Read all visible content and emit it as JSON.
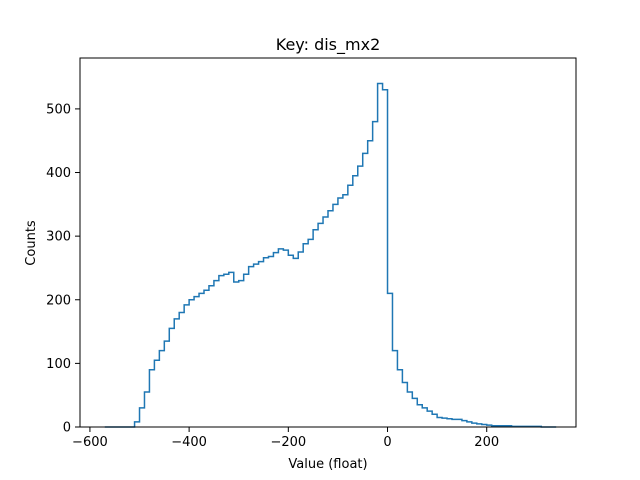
{
  "chart_data": {
    "type": "histogram",
    "title": "Key: dis_mx2",
    "xlabel": "Value (float)",
    "ylabel": "Counts",
    "xlim": [
      -620,
      380
    ],
    "ylim": [
      0,
      580
    ],
    "xticks": [
      -600,
      -400,
      -200,
      0,
      200
    ],
    "xtick_labels": [
      "−600",
      "−400",
      "−200",
      "0",
      "200"
    ],
    "yticks": [
      0,
      100,
      200,
      300,
      400,
      500
    ],
    "ytick_labels": [
      "0",
      "100",
      "200",
      "300",
      "400",
      "500"
    ],
    "grid": false,
    "color": "#1f77b4",
    "bin_centers": [
      -565,
      -555,
      -545,
      -535,
      -525,
      -515,
      -505,
      -495,
      -485,
      -475,
      -465,
      -455,
      -445,
      -435,
      -425,
      -415,
      -405,
      -395,
      -385,
      -375,
      -365,
      -355,
      -345,
      -335,
      -325,
      -315,
      -305,
      -295,
      -285,
      -275,
      -265,
      -255,
      -245,
      -235,
      -225,
      -215,
      -205,
      -195,
      -185,
      -175,
      -165,
      -155,
      -145,
      -135,
      -125,
      -115,
      -105,
      -95,
      -85,
      -75,
      -65,
      -55,
      -45,
      -35,
      -25,
      -15,
      -5,
      5,
      15,
      25,
      35,
      45,
      55,
      65,
      75,
      85,
      95,
      105,
      115,
      125,
      135,
      145,
      155,
      165,
      175,
      185,
      195,
      205,
      215,
      225,
      235,
      245,
      255,
      265,
      275,
      285,
      295,
      305,
      315,
      325,
      335
    ],
    "counts": [
      0,
      0,
      0,
      0,
      0,
      0,
      8,
      30,
      55,
      90,
      105,
      120,
      135,
      155,
      170,
      180,
      192,
      200,
      205,
      210,
      215,
      222,
      230,
      238,
      240,
      243,
      228,
      230,
      240,
      252,
      256,
      260,
      266,
      268,
      274,
      280,
      278,
      270,
      265,
      275,
      288,
      295,
      310,
      320,
      330,
      340,
      350,
      360,
      365,
      380,
      395,
      410,
      430,
      450,
      480,
      540,
      530,
      210,
      120,
      90,
      70,
      55,
      45,
      35,
      30,
      25,
      20,
      15,
      14,
      13,
      12,
      12,
      10,
      8,
      6,
      5,
      4,
      3,
      2,
      2,
      2,
      2,
      1,
      1,
      1,
      1,
      1,
      1,
      0,
      0,
      0
    ]
  }
}
